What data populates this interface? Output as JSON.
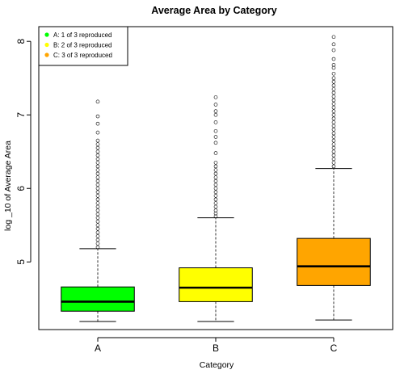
{
  "chart_data": {
    "type": "box",
    "title": "Average Area by Category",
    "xlabel": "Category",
    "ylabel": "log _10 of Average Area",
    "categories": [
      "A",
      "B",
      "C"
    ],
    "ylim": [
      4.08,
      8.2
    ],
    "yticks": [
      "5",
      "6",
      "7",
      "8"
    ],
    "grid": false,
    "legend_position": "top-left",
    "legend": [
      {
        "label": "A: 1  of 3  reproduced",
        "color": "#00ff00"
      },
      {
        "label": "B: 2  of 3  reproduced",
        "color": "#ffff00"
      },
      {
        "label": "C: 3  of 3  reproduced",
        "color": "#ffa500"
      }
    ],
    "boxes": [
      {
        "category": "A",
        "color": "#00ff00",
        "whisker_low": 4.19,
        "q1": 4.33,
        "median": 4.46,
        "q3": 4.66,
        "whisker_high": 5.18,
        "outliers": [
          5.2,
          5.25,
          5.3,
          5.35,
          5.4,
          5.45,
          5.5,
          5.55,
          5.6,
          5.65,
          5.7,
          5.75,
          5.8,
          5.85,
          5.9,
          5.95,
          6.0,
          6.05,
          6.1,
          6.15,
          6.2,
          6.25,
          6.3,
          6.35,
          6.4,
          6.45,
          6.5,
          6.55,
          6.6,
          6.65,
          6.76,
          6.88,
          6.98,
          7.18
        ]
      },
      {
        "category": "B",
        "color": "#ffff00",
        "whisker_low": 4.19,
        "q1": 4.46,
        "median": 4.65,
        "q3": 4.92,
        "whisker_high": 5.6,
        "outliers": [
          5.62,
          5.66,
          5.7,
          5.75,
          5.8,
          5.85,
          5.9,
          5.95,
          6.0,
          6.05,
          6.1,
          6.15,
          6.2,
          6.25,
          6.3,
          6.35,
          6.48,
          6.62,
          6.7,
          6.78,
          6.9,
          7.0,
          7.05,
          7.14,
          7.24
        ]
      },
      {
        "category": "C",
        "color": "#ffa500",
        "whisker_low": 4.21,
        "q1": 4.68,
        "median": 4.94,
        "q3": 5.32,
        "whisker_high": 6.27,
        "outliers": [
          6.3,
          6.35,
          6.4,
          6.45,
          6.5,
          6.55,
          6.6,
          6.65,
          6.7,
          6.75,
          6.8,
          6.85,
          6.9,
          6.95,
          7.0,
          7.05,
          7.1,
          7.15,
          7.2,
          7.25,
          7.3,
          7.35,
          7.4,
          7.45,
          7.5,
          7.56,
          7.64,
          7.68,
          7.76,
          7.88,
          7.96,
          8.06
        ]
      }
    ]
  }
}
